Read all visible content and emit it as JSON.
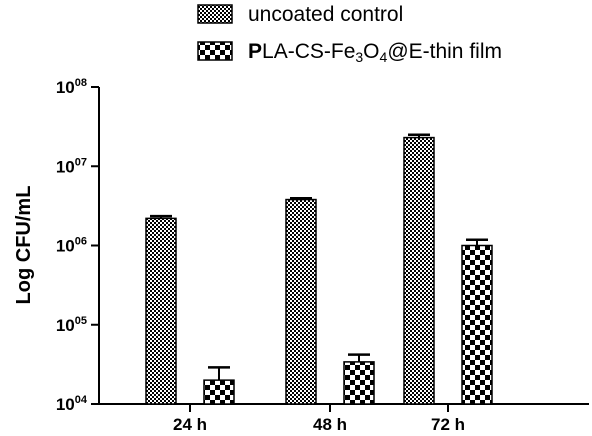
{
  "chart_data": {
    "type": "bar",
    "categories": [
      "24 h",
      "48 h",
      "72 h"
    ],
    "series": [
      {
        "name": "uncoated control",
        "values": [
          2200000,
          3800000,
          23000000
        ],
        "errors": [
          150000,
          150000,
          2000000
        ]
      },
      {
        "name": "PLA-CS-Fe3O4@E-thin film",
        "values": [
          20000,
          34000,
          1000000
        ],
        "errors": [
          9000,
          8000,
          180000
        ]
      }
    ],
    "xlabel": "",
    "ylabel": "Log CFU/mL",
    "yscale": "log",
    "ylim": [
      10000,
      100000000
    ],
    "yticks": [
      {
        "base": "10",
        "exp": "04",
        "value": 10000
      },
      {
        "base": "10",
        "exp": "05",
        "value": 100000
      },
      {
        "base": "10",
        "exp": "06",
        "value": 1000000
      },
      {
        "base": "10",
        "exp": "07",
        "value": 10000000
      },
      {
        "base": "10",
        "exp": "08",
        "value": 100000000
      }
    ],
    "legend": {
      "placement": "top",
      "entries": [
        {
          "text": "uncoated control",
          "pattern": "dense-checker"
        },
        {
          "pre": "P",
          "main": "LA-CS-Fe",
          "sub1": "3",
          "mid": "O",
          "sub2": "4",
          "post": "@E-thin film",
          "pattern": "coarse-checker"
        }
      ]
    },
    "grid": false,
    "colors": {
      "bar_fill_light": "#ffffff",
      "bar_fill_dark": "#000000"
    }
  }
}
